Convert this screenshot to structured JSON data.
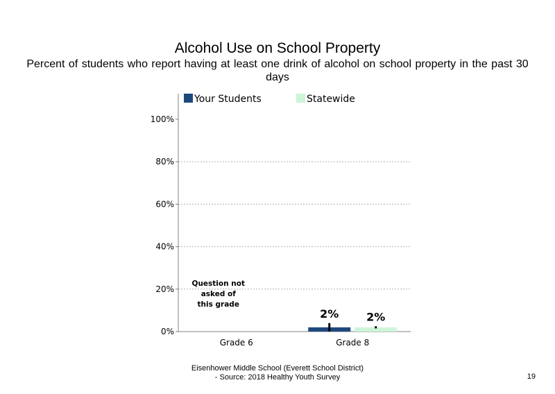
{
  "slide": {
    "title": "Alcohol Use on School Property",
    "subtitle": "Percent of students who report having at least one drink of alcohol on school property in the past 30 days",
    "footer_line1": "Eisenhower Middle School (Everett School District)",
    "footer_line2": "- Source: 2018 Healthy Youth Survey",
    "page_number": "19"
  },
  "chart_data": {
    "type": "bar",
    "categories": [
      "Grade 6",
      "Grade 8"
    ],
    "series": [
      {
        "name": "Your Students",
        "color": "#1f497d",
        "values": [
          null,
          2
        ],
        "labels": [
          "",
          "2%"
        ],
        "error": [
          null,
          2
        ]
      },
      {
        "name": "Statewide",
        "color": "#ccf5d8",
        "values": [
          null,
          2
        ],
        "labels": [
          "",
          "2%"
        ],
        "error": [
          null,
          0.5
        ]
      }
    ],
    "ylim": [
      0,
      100
    ],
    "yticks": [
      "0%",
      "20%",
      "40%",
      "60%",
      "80%",
      "100%"
    ],
    "ytick_values": [
      0,
      20,
      40,
      60,
      80,
      100
    ],
    "grid": true,
    "legend_position": "top",
    "annotations": [
      {
        "category": "Grade 6",
        "lines": [
          "Question not",
          "asked of",
          "this grade"
        ]
      }
    ]
  }
}
